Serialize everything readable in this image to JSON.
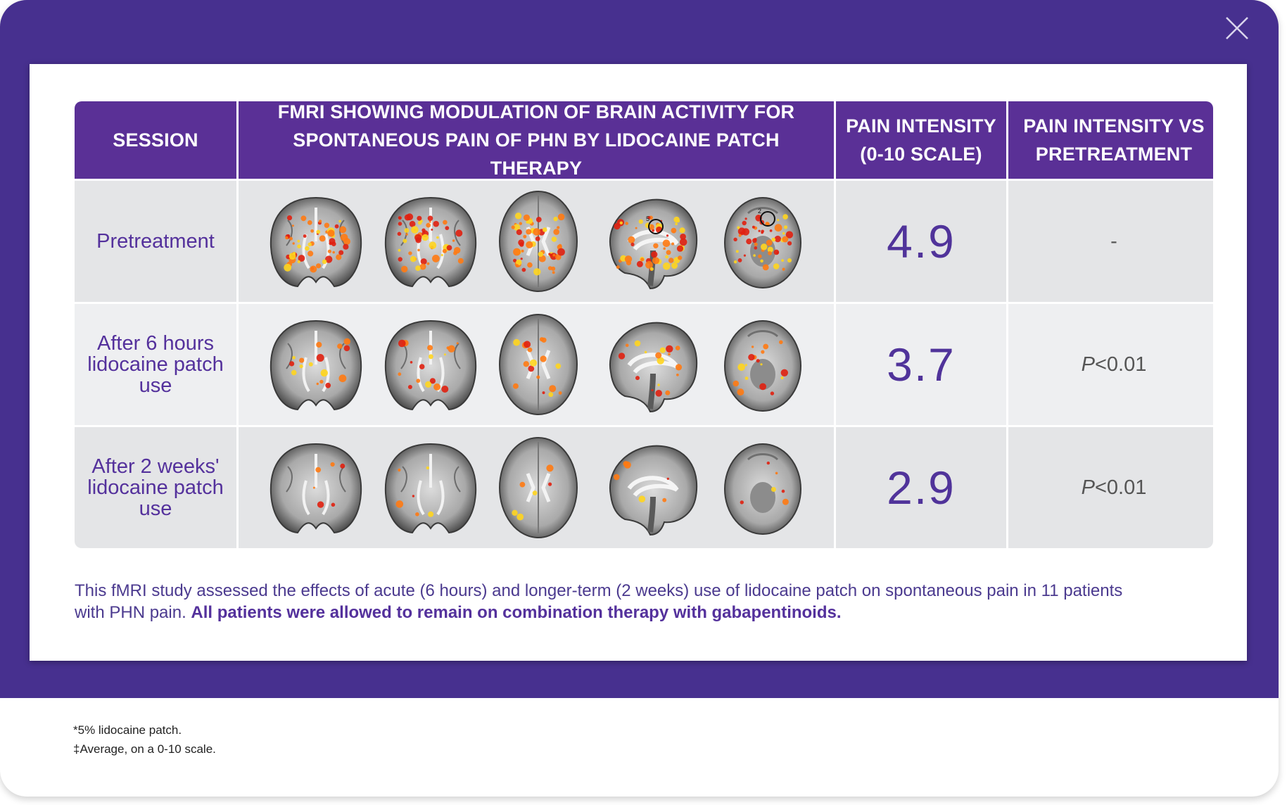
{
  "table": {
    "headers": [
      "SESSION",
      "FMRI SHOWING MODULATION OF BRAIN ACTIVITY FOR SPONTANEOUS PAIN OF PHN BY LIDOCAINE PATCH THERAPY",
      "PAIN INTENSITY (0-10 SCALE)",
      "PAIN INTENSITY VS PRETREATMENT"
    ],
    "rows": [
      {
        "session": "Pretreatment",
        "pain": "4.9",
        "pvalue_prefix": "",
        "pvalue": "-",
        "image_label": "Pretreatment fMRI brain scans",
        "roi_labels": [
          "5",
          "2"
        ]
      },
      {
        "session": "After 6 hours lidocaine patch use",
        "pain": "3.7",
        "pvalue_prefix": "P",
        "pvalue": "<0.01",
        "image_label": "fMRI brain scans after 6 hours lidocaine patch use"
      },
      {
        "session": "After 2 weeks' lidocaine patch use",
        "pain": "2.9",
        "pvalue_prefix": "P",
        "pvalue": "<0.01",
        "image_label": "fMRI brain scans after 2 weeks lidocaine patch use"
      }
    ]
  },
  "caption": {
    "text": "This fMRI study assessed the effects of acute (6 hours) and longer-term (2 weeks) use of lidocaine patch on spontaneous pain in 11 patients with PHN pain. ",
    "bold": "All patients were allowed to remain on combination therapy with gabapentinoids."
  },
  "footnotes": [
    "*5% lidocaine patch.",
    "‡Average, on a 0-10 scale."
  ],
  "close": {
    "icon": "close-icon"
  },
  "colors": {
    "frame": "#47308f",
    "header": "#5a3096",
    "text_accent": "#54319c"
  }
}
